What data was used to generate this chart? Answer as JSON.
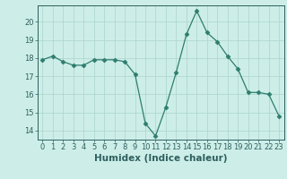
{
  "x": [
    0,
    1,
    2,
    3,
    4,
    5,
    6,
    7,
    8,
    9,
    10,
    11,
    12,
    13,
    14,
    15,
    16,
    17,
    18,
    19,
    20,
    21,
    22,
    23
  ],
  "y": [
    17.9,
    18.1,
    17.8,
    17.6,
    17.6,
    17.9,
    17.9,
    17.9,
    17.8,
    17.1,
    14.4,
    13.7,
    15.3,
    17.2,
    19.3,
    20.6,
    19.4,
    18.9,
    18.1,
    17.4,
    16.1,
    16.1,
    16.0,
    14.8
  ],
  "xlabel": "Humidex (Indice chaleur)",
  "xlim": [
    -0.5,
    23.5
  ],
  "ylim": [
    13.5,
    20.9
  ],
  "yticks": [
    14,
    15,
    16,
    17,
    18,
    19,
    20
  ],
  "xticks": [
    0,
    1,
    2,
    3,
    4,
    5,
    6,
    7,
    8,
    9,
    10,
    11,
    12,
    13,
    14,
    15,
    16,
    17,
    18,
    19,
    20,
    21,
    22,
    23
  ],
  "line_color": "#2e7d6e",
  "marker": "D",
  "marker_size": 2.5,
  "bg_color": "#cdeee8",
  "grid_color": "#b0d8d0",
  "tick_label_color": "#2e5f5f",
  "xlabel_fontsize": 7.5,
  "tick_fontsize": 6.0
}
